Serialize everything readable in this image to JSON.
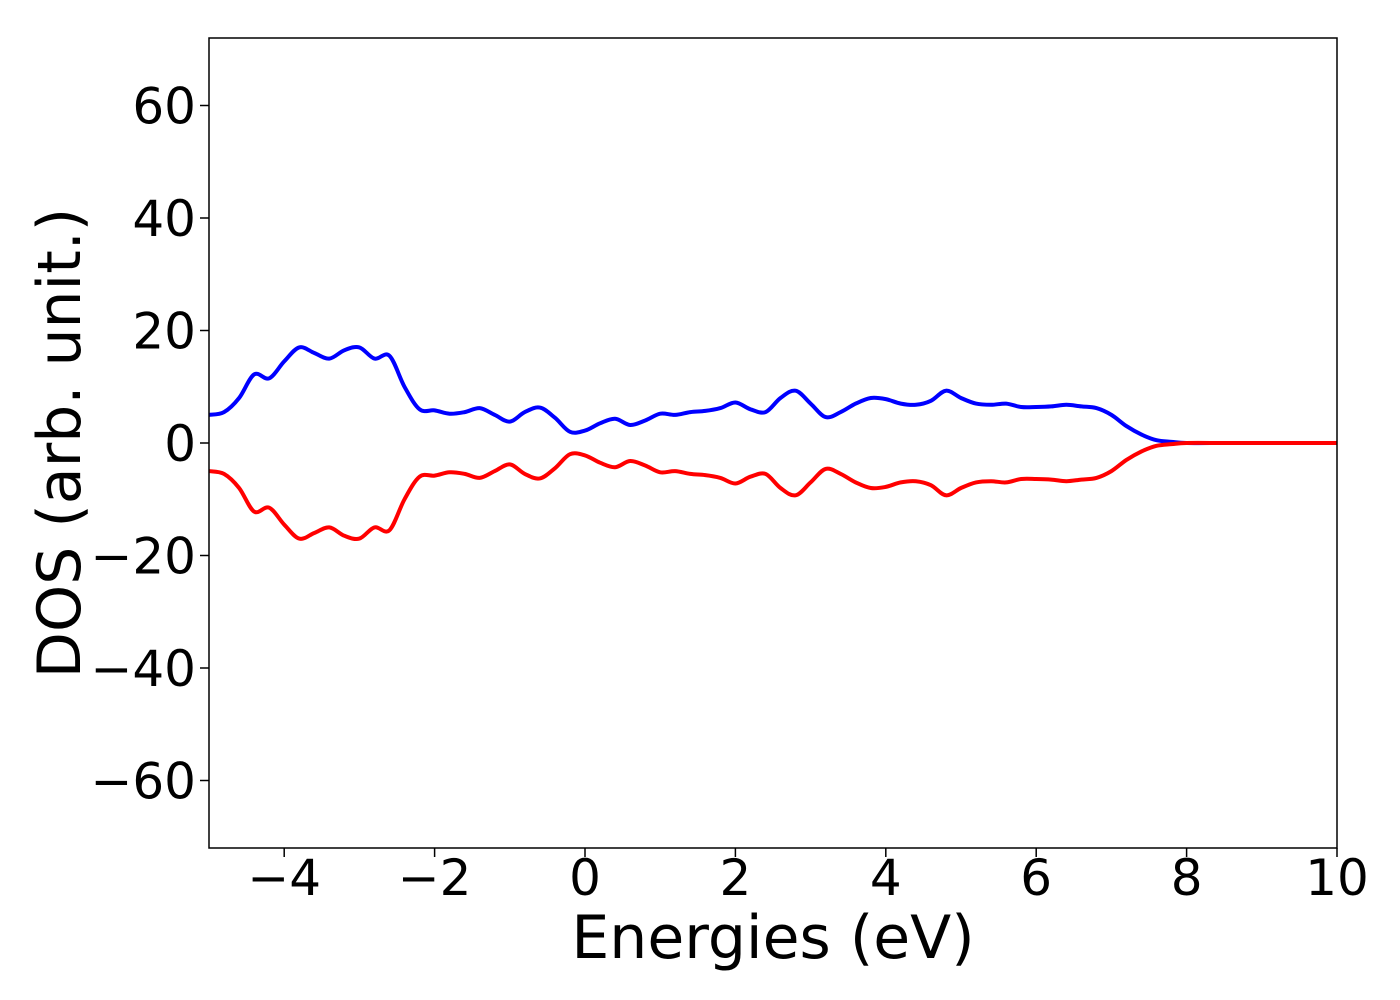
{
  "chart_data": {
    "type": "line",
    "title": "",
    "xlabel": "Energies (eV)",
    "ylabel": "DOS (arb. unit.)",
    "xlim": [
      -5,
      10
    ],
    "ylim": [
      -72,
      72
    ],
    "grid": false,
    "legend": "none",
    "x_ticks": [
      -4,
      -2,
      0,
      2,
      4,
      6,
      8,
      10
    ],
    "x_tick_labels": [
      "−4",
      "−2",
      "0",
      "2",
      "4",
      "6",
      "8",
      "10"
    ],
    "y_ticks": [
      60,
      40,
      20,
      0,
      -20,
      -40,
      -60
    ],
    "y_tick_labels": [
      "60",
      "40",
      "20",
      "0",
      "−20",
      "−40",
      "−60"
    ],
    "series": [
      {
        "color": "#0000ff",
        "x": [
          -5.0,
          -4.8,
          -4.6,
          -4.4,
          -4.2,
          -4.0,
          -3.8,
          -3.6,
          -3.4,
          -3.2,
          -3.0,
          -2.8,
          -2.6,
          -2.4,
          -2.2,
          -2.0,
          -1.8,
          -1.6,
          -1.4,
          -1.2,
          -1.0,
          -0.8,
          -0.6,
          -0.4,
          -0.2,
          0.0,
          0.2,
          0.4,
          0.6,
          0.8,
          1.0,
          1.2,
          1.4,
          1.6,
          1.8,
          2.0,
          2.2,
          2.4,
          2.6,
          2.8,
          3.0,
          3.2,
          3.4,
          3.6,
          3.8,
          4.0,
          4.2,
          4.4,
          4.6,
          4.8,
          5.0,
          5.2,
          5.4,
          5.6,
          5.8,
          6.0,
          6.2,
          6.4,
          6.6,
          6.8,
          7.0,
          7.2,
          7.4,
          7.6,
          7.8,
          8.0,
          8.5,
          9.0,
          9.5,
          10.0
        ],
        "y": [
          5.0,
          5.5,
          8.0,
          12.2,
          11.5,
          14.5,
          17.0,
          16.0,
          15.0,
          16.5,
          17.0,
          15.0,
          15.5,
          10.0,
          6.0,
          5.8,
          5.2,
          5.5,
          6.2,
          5.0,
          3.8,
          5.5,
          6.3,
          4.5,
          2.0,
          2.2,
          3.5,
          4.3,
          3.2,
          4.0,
          5.2,
          5.0,
          5.5,
          5.7,
          6.2,
          7.2,
          6.0,
          5.5,
          8.0,
          9.3,
          7.0,
          4.6,
          5.5,
          7.0,
          8.0,
          7.8,
          7.0,
          6.8,
          7.5,
          9.3,
          8.0,
          7.0,
          6.8,
          7.0,
          6.4,
          6.4,
          6.5,
          6.8,
          6.5,
          6.2,
          5.0,
          3.0,
          1.5,
          0.5,
          0.2,
          0.0,
          0.0,
          0.0,
          0.0,
          0.0
        ]
      },
      {
        "color": "#ff0000",
        "x": [
          -5.0,
          -4.8,
          -4.6,
          -4.4,
          -4.2,
          -4.0,
          -3.8,
          -3.6,
          -3.4,
          -3.2,
          -3.0,
          -2.8,
          -2.6,
          -2.4,
          -2.2,
          -2.0,
          -1.8,
          -1.6,
          -1.4,
          -1.2,
          -1.0,
          -0.8,
          -0.6,
          -0.4,
          -0.2,
          0.0,
          0.2,
          0.4,
          0.6,
          0.8,
          1.0,
          1.2,
          1.4,
          1.6,
          1.8,
          2.0,
          2.2,
          2.4,
          2.6,
          2.8,
          3.0,
          3.2,
          3.4,
          3.6,
          3.8,
          4.0,
          4.2,
          4.4,
          4.6,
          4.8,
          5.0,
          5.2,
          5.4,
          5.6,
          5.8,
          6.0,
          6.2,
          6.4,
          6.6,
          6.8,
          7.0,
          7.2,
          7.4,
          7.6,
          7.8,
          8.0,
          8.5,
          9.0,
          9.5,
          10.0
        ],
        "y": [
          -5.0,
          -5.5,
          -8.0,
          -12.2,
          -11.5,
          -14.5,
          -17.0,
          -16.0,
          -15.0,
          -16.5,
          -17.0,
          -15.0,
          -15.5,
          -10.0,
          -6.0,
          -5.8,
          -5.2,
          -5.5,
          -6.2,
          -5.0,
          -3.8,
          -5.5,
          -6.3,
          -4.5,
          -2.0,
          -2.2,
          -3.5,
          -4.3,
          -3.2,
          -4.0,
          -5.2,
          -5.0,
          -5.5,
          -5.7,
          -6.2,
          -7.2,
          -6.0,
          -5.5,
          -8.0,
          -9.3,
          -7.0,
          -4.6,
          -5.5,
          -7.0,
          -8.0,
          -7.8,
          -7.0,
          -6.8,
          -7.5,
          -9.3,
          -8.0,
          -7.0,
          -6.8,
          -7.0,
          -6.4,
          -6.4,
          -6.5,
          -6.8,
          -6.5,
          -6.2,
          -5.0,
          -3.0,
          -1.5,
          -0.5,
          -0.2,
          0.0,
          0.0,
          0.0,
          0.0,
          0.0
        ]
      }
    ]
  }
}
